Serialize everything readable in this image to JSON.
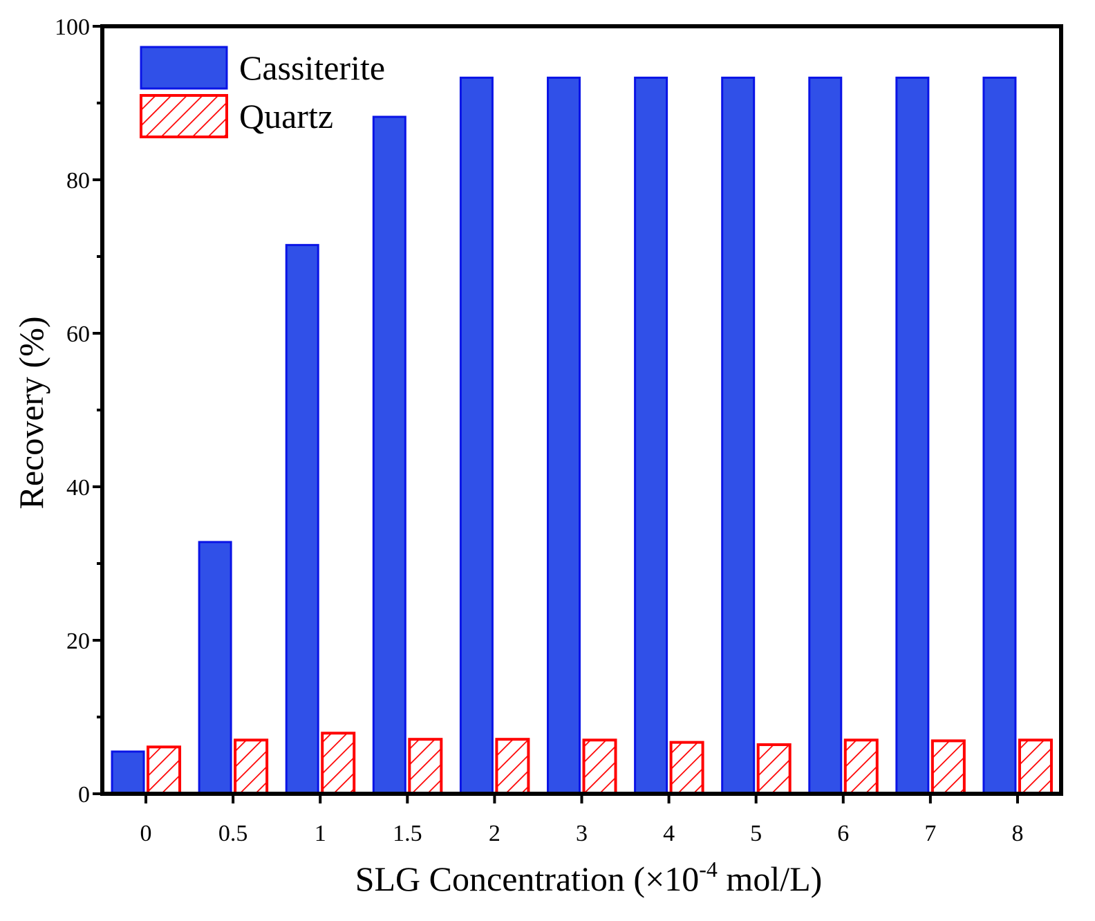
{
  "chart_data": {
    "type": "bar",
    "title": "",
    "xlabel_main": "SLG Concentration (×10",
    "xlabel_sup": "-4",
    "xlabel_tail": " mol/L)",
    "ylabel": "Recovery (%)",
    "ylim": [
      0,
      100
    ],
    "yticks": [
      0,
      20,
      40,
      60,
      80,
      100
    ],
    "yticks_minor": [
      10,
      30,
      50,
      70,
      90
    ],
    "categories": [
      "0",
      "0.5",
      "1",
      "1.5",
      "2",
      "3",
      "4",
      "5",
      "6",
      "7",
      "8"
    ],
    "series": [
      {
        "name": "Cassiterite",
        "pattern": "solid",
        "fill": "#3050e8",
        "stroke": "#0a14e6",
        "values": [
          5.5,
          32.8,
          71.5,
          88.2,
          93.3,
          93.3,
          93.3,
          93.3,
          93.3,
          93.3,
          93.3
        ]
      },
      {
        "name": "Quartz",
        "pattern": "hatch",
        "fill": "#ffffff",
        "stroke": "#ff0000",
        "values": [
          6.1,
          7.0,
          7.9,
          7.1,
          7.1,
          7.0,
          6.7,
          6.4,
          7.0,
          6.9,
          7.0
        ]
      }
    ],
    "legend": {
      "position": "top-left"
    },
    "grid": false
  }
}
